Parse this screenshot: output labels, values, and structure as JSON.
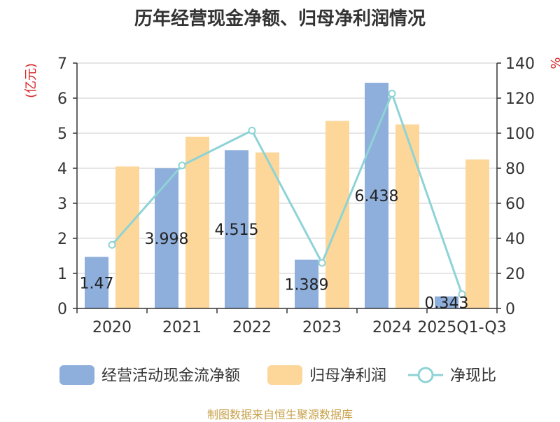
{
  "chart_data": {
    "type": "bar",
    "title": "历年经营现金净额、归母净利润情况",
    "categories": [
      "2020",
      "2021",
      "2022",
      "2023",
      "2024",
      "2025Q1-Q3"
    ],
    "series": [
      {
        "name": "经营活动现金流净额",
        "type": "bar",
        "axis": "left",
        "values": [
          1.47,
          3.998,
          4.515,
          1.389,
          6.438,
          0.343
        ],
        "labels": [
          "1.47",
          "3.998",
          "4.515",
          "1.389",
          "6.438",
          "0.343"
        ],
        "color": "#8eaedc"
      },
      {
        "name": "归母净利润",
        "type": "bar",
        "axis": "left",
        "values": [
          4.05,
          4.9,
          4.45,
          5.35,
          5.25,
          4.25
        ],
        "color": "#fdd699"
      },
      {
        "name": "净现比",
        "type": "line",
        "axis": "right",
        "values": [
          36.3,
          81.6,
          101.5,
          26.0,
          122.6,
          8.1
        ],
        "color": "#8ed3d6"
      }
    ],
    "ylabel": "(亿元)",
    "y2label": "%",
    "ylim": [
      0,
      7
    ],
    "y2lim": [
      0,
      140
    ],
    "yticks": [
      "0",
      "1",
      "2",
      "3",
      "4",
      "5",
      "6",
      "7"
    ],
    "y2ticks": [
      "0",
      "20",
      "40",
      "60",
      "80",
      "100",
      "120",
      "140"
    ],
    "grid": true,
    "legend": "bottom"
  },
  "source_text": "制图数据来自恒生聚源数据库"
}
